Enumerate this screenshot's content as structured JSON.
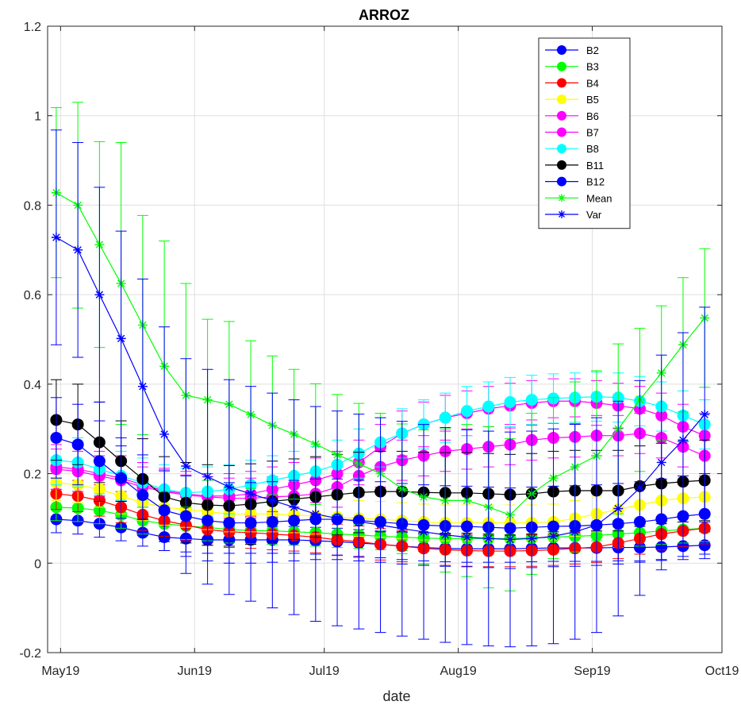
{
  "chart_data": {
    "type": "line",
    "title": "ARROZ",
    "xlabel": "date",
    "ylabel": "",
    "ylim": [
      -0.2,
      1.2
    ],
    "yticks": [
      "-0.2",
      "0",
      "0.2",
      "0.4",
      "0.6",
      "0.8",
      "1",
      "1.2"
    ],
    "xlim": [
      "2019-04-28",
      "2019-10-01"
    ],
    "xticks": [
      {
        "date": "2019-05-01",
        "label": "May19"
      },
      {
        "date": "2019-06-01",
        "label": "Jun19"
      },
      {
        "date": "2019-07-01",
        "label": "Jul19"
      },
      {
        "date": "2019-08-01",
        "label": "Aug19"
      },
      {
        "date": "2019-09-01",
        "label": "Sep19"
      },
      {
        "date": "2019-10-01",
        "label": "Oct19"
      }
    ],
    "grid": true,
    "legend_position": "top-right",
    "x": [
      "2019-04-30",
      "2019-05-05",
      "2019-05-10",
      "2019-05-15",
      "2019-05-20",
      "2019-05-25",
      "2019-05-30",
      "2019-06-04",
      "2019-06-09",
      "2019-06-14",
      "2019-06-19",
      "2019-06-24",
      "2019-06-29",
      "2019-07-04",
      "2019-07-09",
      "2019-07-14",
      "2019-07-19",
      "2019-07-24",
      "2019-07-29",
      "2019-08-03",
      "2019-08-08",
      "2019-08-13",
      "2019-08-18",
      "2019-08-23",
      "2019-08-28",
      "2019-09-02",
      "2019-09-07",
      "2019-09-12",
      "2019-09-17",
      "2019-09-22",
      "2019-09-27"
    ],
    "series": [
      {
        "name": "B2",
        "color": "#0000ff",
        "marker": "dot",
        "errorbar": 0.03,
        "values": [
          0.098,
          0.095,
          0.088,
          0.08,
          0.068,
          0.058,
          0.055,
          0.052,
          0.052,
          0.052,
          0.052,
          0.052,
          0.05,
          0.048,
          0.045,
          0.042,
          0.038,
          0.035,
          0.033,
          0.032,
          0.032,
          0.032,
          0.033,
          0.034,
          0.034,
          0.034,
          0.035,
          0.035,
          0.036,
          0.038,
          0.04
        ]
      },
      {
        "name": "B3",
        "color": "#00ff00",
        "marker": "dot",
        "errorbar": 0.03,
        "values": [
          0.125,
          0.123,
          0.118,
          0.108,
          0.095,
          0.088,
          0.083,
          0.08,
          0.075,
          0.073,
          0.072,
          0.07,
          0.068,
          0.065,
          0.063,
          0.06,
          0.058,
          0.056,
          0.055,
          0.055,
          0.055,
          0.055,
          0.056,
          0.058,
          0.06,
          0.062,
          0.065,
          0.068,
          0.072,
          0.075,
          0.078
        ]
      },
      {
        "name": "B4",
        "color": "#ff0000",
        "marker": "dot",
        "errorbar": 0.035,
        "values": [
          0.155,
          0.15,
          0.14,
          0.125,
          0.108,
          0.095,
          0.085,
          0.075,
          0.07,
          0.068,
          0.065,
          0.062,
          0.058,
          0.052,
          0.048,
          0.042,
          0.038,
          0.033,
          0.03,
          0.028,
          0.027,
          0.027,
          0.028,
          0.03,
          0.033,
          0.036,
          0.045,
          0.055,
          0.065,
          0.072,
          0.078
        ]
      },
      {
        "name": "B5",
        "color": "#ffff00",
        "marker": "dot",
        "errorbar": 0.04,
        "values": [
          0.18,
          0.175,
          0.165,
          0.15,
          0.135,
          0.125,
          0.12,
          0.115,
          0.11,
          0.11,
          0.11,
          0.108,
          0.105,
          0.103,
          0.1,
          0.098,
          0.095,
          0.092,
          0.09,
          0.09,
          0.09,
          0.09,
          0.09,
          0.092,
          0.1,
          0.11,
          0.12,
          0.13,
          0.14,
          0.145,
          0.148
        ]
      },
      {
        "name": "B6",
        "color": "#ff00ff",
        "marker": "dot",
        "errorbar": 0.045,
        "values": [
          0.21,
          0.205,
          0.195,
          0.185,
          0.17,
          0.16,
          0.152,
          0.148,
          0.145,
          0.145,
          0.148,
          0.15,
          0.155,
          0.17,
          0.195,
          0.215,
          0.23,
          0.24,
          0.25,
          0.255,
          0.26,
          0.265,
          0.275,
          0.28,
          0.282,
          0.285,
          0.285,
          0.29,
          0.28,
          0.26,
          0.24
        ]
      },
      {
        "name": "B7",
        "color": "#ff00ff",
        "marker": "dot",
        "errorbar": 0.05,
        "values": [
          0.215,
          0.21,
          0.2,
          0.19,
          0.175,
          0.162,
          0.155,
          0.15,
          0.15,
          0.155,
          0.165,
          0.175,
          0.185,
          0.2,
          0.225,
          0.26,
          0.29,
          0.31,
          0.325,
          0.335,
          0.345,
          0.352,
          0.358,
          0.362,
          0.362,
          0.358,
          0.352,
          0.345,
          0.33,
          0.305,
          0.285
        ]
      },
      {
        "name": "B8",
        "color": "#00ffff",
        "marker": "dot",
        "errorbar": 0.055,
        "values": [
          0.23,
          0.225,
          0.21,
          0.195,
          0.18,
          0.165,
          0.157,
          0.16,
          0.165,
          0.175,
          0.185,
          0.195,
          0.205,
          0.22,
          0.245,
          0.27,
          0.29,
          0.31,
          0.325,
          0.34,
          0.35,
          0.36,
          0.365,
          0.368,
          0.37,
          0.372,
          0.37,
          0.362,
          0.35,
          0.33,
          0.31
        ]
      },
      {
        "name": "B11",
        "color": "#000000",
        "marker": "dot",
        "errorbar": 0.09,
        "values": [
          0.32,
          0.31,
          0.27,
          0.228,
          0.188,
          0.148,
          0.135,
          0.13,
          0.128,
          0.132,
          0.138,
          0.143,
          0.148,
          0.153,
          0.158,
          0.16,
          0.16,
          0.158,
          0.157,
          0.157,
          0.155,
          0.153,
          0.155,
          0.16,
          0.162,
          0.162,
          0.162,
          0.172,
          0.178,
          0.182,
          0.185
        ]
      },
      {
        "name": "B12",
        "color": "#0000ff",
        "marker": "dot",
        "errorbar": 0.09,
        "values": [
          0.28,
          0.265,
          0.228,
          0.19,
          0.152,
          0.118,
          0.105,
          0.095,
          0.09,
          0.09,
          0.092,
          0.095,
          0.098,
          0.098,
          0.095,
          0.092,
          0.088,
          0.085,
          0.083,
          0.082,
          0.08,
          0.078,
          0.08,
          0.082,
          0.083,
          0.085,
          0.088,
          0.092,
          0.098,
          0.105,
          0.11
        ]
      },
      {
        "name": "Mean",
        "color": "#00ff00",
        "marker": "star",
        "errorbar_upper": [
          0.19,
          0.23,
          0.23,
          0.315,
          0.245,
          0.28,
          0.25,
          0.18,
          0.185,
          0.165,
          0.155,
          0.145,
          0.135,
          0.135,
          0.135,
          0.135,
          0.145,
          0.15,
          0.16,
          0.17,
          0.18,
          0.17,
          0.18,
          0.18,
          0.19,
          0.19,
          0.19,
          0.16,
          0.15,
          0.15,
          0.155
        ],
        "values": [
          0.828,
          0.8,
          0.712,
          0.625,
          0.532,
          0.44,
          0.375,
          0.365,
          0.355,
          0.332,
          0.308,
          0.288,
          0.266,
          0.242,
          0.222,
          0.2,
          0.166,
          0.148,
          0.14,
          0.14,
          0.125,
          0.108,
          0.155,
          0.19,
          0.215,
          0.24,
          0.3,
          0.365,
          0.425,
          0.488,
          0.548
        ]
      },
      {
        "name": "Var",
        "color": "#0000ff",
        "marker": "star",
        "errorbar": 0.24,
        "values": [
          0.728,
          0.7,
          0.6,
          0.502,
          0.395,
          0.288,
          0.217,
          0.193,
          0.17,
          0.155,
          0.14,
          0.125,
          0.11,
          0.1,
          0.093,
          0.085,
          0.077,
          0.07,
          0.063,
          0.058,
          0.055,
          0.053,
          0.055,
          0.06,
          0.07,
          0.085,
          0.122,
          0.168,
          0.225,
          0.275,
          0.332
        ]
      }
    ]
  }
}
